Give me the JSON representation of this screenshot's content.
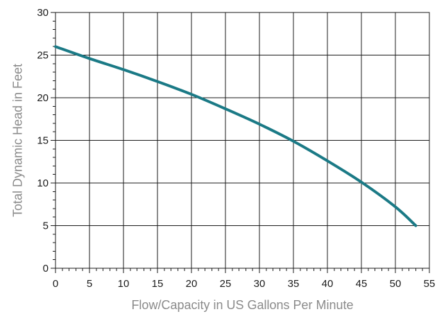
{
  "chart_data": {
    "type": "line",
    "title": "",
    "xlabel": "Flow/Capacity in US Gallons Per Minute",
    "ylabel": "Total Dynamic Head in Feet",
    "xlim": [
      0,
      55
    ],
    "ylim": [
      0,
      30
    ],
    "x_ticks": [
      0,
      5,
      10,
      15,
      20,
      25,
      30,
      35,
      40,
      45,
      50,
      55
    ],
    "y_ticks": [
      0,
      5,
      10,
      15,
      20,
      25,
      30
    ],
    "grid": true,
    "legend": "none",
    "series_color": "#1b7a86",
    "series": [
      {
        "x": [
          0,
          5,
          10,
          15,
          20,
          25,
          30,
          35,
          40,
          45,
          50,
          53
        ],
        "y": [
          26.0,
          24.6,
          23.3,
          21.9,
          20.4,
          18.7,
          16.9,
          14.9,
          12.6,
          10.1,
          7.2,
          5.0
        ]
      }
    ]
  }
}
